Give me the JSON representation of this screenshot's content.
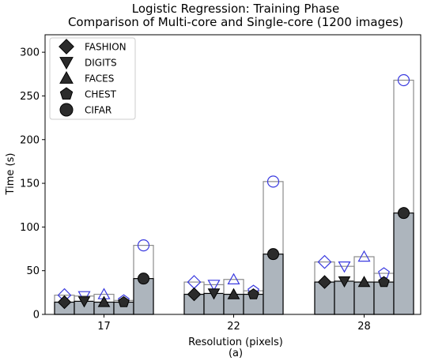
{
  "chart_data": {
    "type": "bar",
    "title": "Logistic Regression: Training Phase",
    "subtitle": "Comparison of Multi-core and Single-core (1200 images)",
    "xlabel": "Resolution (pixels)",
    "sublabel": "(a)",
    "ylabel": "Time (s)",
    "categories": [
      "17",
      "22",
      "28"
    ],
    "ylim": [
      0,
      320
    ],
    "yticks": [
      "0",
      "50",
      "100",
      "150",
      "200",
      "250",
      "300"
    ],
    "grid": false,
    "legend_position": "top-left",
    "series": [
      {
        "name": "FASHION",
        "marker": "diamond",
        "multi_core": [
          14,
          23,
          37
        ],
        "single_core": [
          22,
          37,
          60
        ]
      },
      {
        "name": "DIGITS",
        "marker": "triangle-down",
        "multi_core": [
          15,
          24,
          38
        ],
        "single_core": [
          21,
          34,
          55
        ]
      },
      {
        "name": "FACES",
        "marker": "triangle-up",
        "multi_core": [
          14,
          23,
          37
        ],
        "single_core": [
          23,
          40,
          66
        ]
      },
      {
        "name": "CHEST",
        "marker": "pentagon",
        "multi_core": [
          14,
          23,
          37
        ],
        "single_core": [
          16,
          27,
          47
        ]
      },
      {
        "name": "CIFAR",
        "marker": "circle",
        "multi_core": [
          41,
          69,
          116
        ],
        "single_core": [
          79,
          152,
          268
        ]
      }
    ],
    "colors": {
      "multi_core_fill": "#adb5bd",
      "multi_core_marker": "#2b2b2b",
      "single_core_edge": "#8c8c8c",
      "single_core_marker": "#3a3adf"
    }
  }
}
